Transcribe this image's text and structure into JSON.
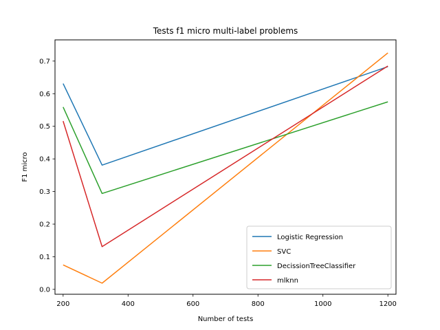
{
  "chart_data": {
    "type": "line",
    "title": "Tests f1 micro multi-label problems",
    "xlabel": "Number of tests",
    "ylabel": "F1 micro",
    "x": [
      200,
      320,
      1200
    ],
    "xlim": [
      175,
      1225
    ],
    "ylim": [
      -0.015,
      0.765
    ],
    "xticks": [
      200,
      400,
      600,
      800,
      1000,
      1200
    ],
    "yticks": [
      0.0,
      0.1,
      0.2,
      0.3,
      0.4,
      0.5,
      0.6,
      0.7
    ],
    "grid": false,
    "legend_position": "lower-right",
    "series": [
      {
        "name": "Logistic Regression",
        "color": "#1f77b4",
        "values": [
          0.631,
          0.381,
          0.683
        ]
      },
      {
        "name": "SVC",
        "color": "#ff7f0e",
        "values": [
          0.075,
          0.019,
          0.725
        ]
      },
      {
        "name": "DecissionTreeClassifier",
        "color": "#2ca02c",
        "values": [
          0.559,
          0.294,
          0.575
        ]
      },
      {
        "name": "mlknn",
        "color": "#d62728",
        "values": [
          0.516,
          0.131,
          0.685
        ]
      }
    ]
  }
}
